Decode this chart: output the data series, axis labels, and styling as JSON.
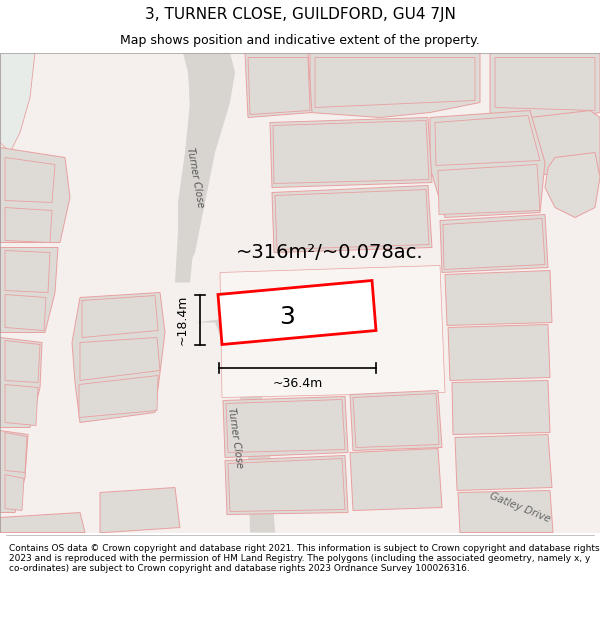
{
  "title": "3, TURNER CLOSE, GUILDFORD, GU4 7JN",
  "subtitle": "Map shows position and indicative extent of the property.",
  "footer": "Contains OS data © Crown copyright and database right 2021. This information is subject to Crown copyright and database rights 2023 and is reproduced with the permission of HM Land Registry. The polygons (including the associated geometry, namely x, y co-ordinates) are subject to Crown copyright and database rights 2023 Ordnance Survey 100026316.",
  "area_label": "~316m²/~0.078ac.",
  "width_label": "~36.4m",
  "height_label": "~18.4m",
  "plot_number": "3",
  "map_bg": "#f5f0ed",
  "road_color": "#d8d4d0",
  "building_color": "#dedad6",
  "outline_color": "#e8a0a0",
  "highlight_color": "#ff0000",
  "highlight_fill": "#ffffff",
  "turner_close_label1": "Turner Close",
  "turner_close_label2": "Turner Close",
  "gatley_drive_label": "Gatley Drive",
  "title_fontsize": 11,
  "subtitle_fontsize": 9,
  "footer_fontsize": 6.5
}
